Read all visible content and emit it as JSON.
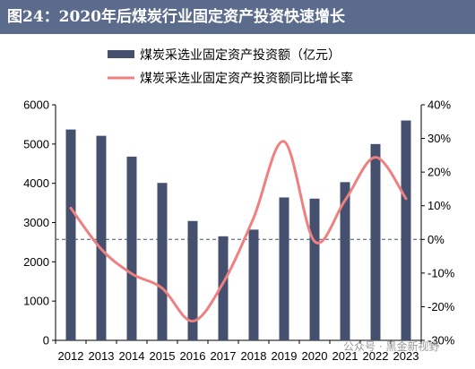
{
  "figure_title": "图24：2020年后煤炭行业固定资产投资快速增长",
  "watermark": "公众号 · 黑金新视野",
  "chart_data": {
    "type": "bar",
    "categories": [
      "2012",
      "2013",
      "2014",
      "2015",
      "2016",
      "2017",
      "2018",
      "2019",
      "2020",
      "2021",
      "2022",
      "2023"
    ],
    "series": [
      {
        "name": "煤炭采选业固定资产投资额（亿元）",
        "type": "bar",
        "axis": "left",
        "color": "#44506e",
        "values": [
          5370,
          5210,
          4680,
          4010,
          3040,
          2650,
          2820,
          3640,
          3610,
          4030,
          5000,
          5600
        ]
      },
      {
        "name": "煤炭采选业固定资产投资额同比增长率",
        "type": "line",
        "axis": "right",
        "color": "#f08080",
        "values": [
          9.3,
          -2.9,
          -10.2,
          -14.5,
          -24.3,
          -12.9,
          6.4,
          29.1,
          -0.6,
          11.6,
          24.4,
          12.1
        ]
      }
    ],
    "left_axis": {
      "min": 0,
      "max": 6000,
      "ticks": [
        0,
        1000,
        2000,
        3000,
        4000,
        5000,
        6000
      ]
    },
    "right_axis": {
      "min": -30,
      "max": 40,
      "ticks": [
        -30,
        -20,
        -10,
        0,
        10,
        20,
        30,
        40
      ],
      "tick_labels": [
        "-30%",
        "-20%",
        "-10%",
        "0%",
        "10%",
        "20%",
        "30%",
        "40%"
      ]
    },
    "zero_line": {
      "style": "dashed",
      "color": "#44506e"
    },
    "grid": false,
    "legend_position": "top"
  }
}
